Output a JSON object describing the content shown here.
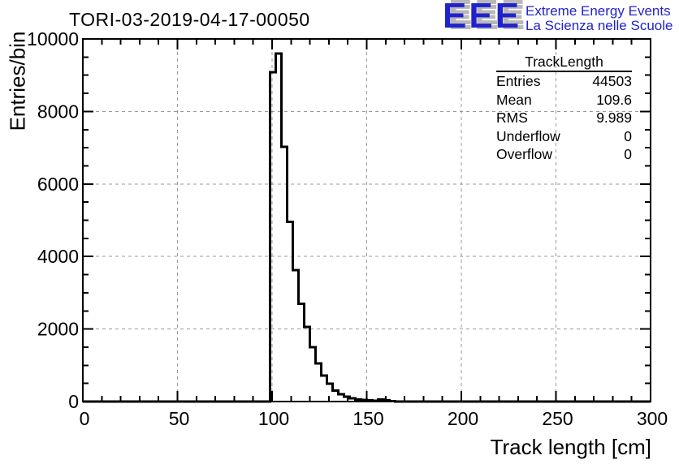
{
  "header": {
    "logo": {
      "acronym": "EEE",
      "tagline_en": "Extreme Energy Events",
      "tagline_it": "La Scienza nelle Scuole"
    }
  },
  "stats_box": {
    "title": "TrackLength",
    "rows": [
      {
        "label": "Entries",
        "value": "44503"
      },
      {
        "label": "Mean",
        "value": "109.6"
      },
      {
        "label": "RMS",
        "value": "9.989"
      },
      {
        "label": "Underflow",
        "value": "0"
      },
      {
        "label": "Overflow",
        "value": "0"
      }
    ]
  },
  "colors": {
    "logo_blue": "#2222cc",
    "logo_shadow": "#b8b8b8",
    "grid": "#999999",
    "line": "#000000"
  },
  "chart_data": {
    "type": "bar",
    "title": "TORI-03-2019-04-17-00050",
    "xlabel": "Track length [cm]",
    "ylabel": "Entries/bin",
    "xlim": [
      0,
      300
    ],
    "ylim": [
      0,
      10000
    ],
    "x_major_ticks": [
      0,
      50,
      100,
      150,
      200,
      250,
      300
    ],
    "x_minor_step": 10,
    "y_major_ticks": [
      0,
      2000,
      4000,
      6000,
      8000,
      10000
    ],
    "y_minor_step": 500,
    "grid": true,
    "legend_position": "none",
    "bins": {
      "start": 99,
      "width": 3,
      "values": [
        9080,
        9600,
        7030,
        4960,
        3620,
        2700,
        2060,
        1500,
        1050,
        720,
        490,
        300,
        200,
        130,
        90,
        60,
        40,
        30,
        25,
        60,
        30,
        12,
        5,
        2
      ]
    }
  }
}
